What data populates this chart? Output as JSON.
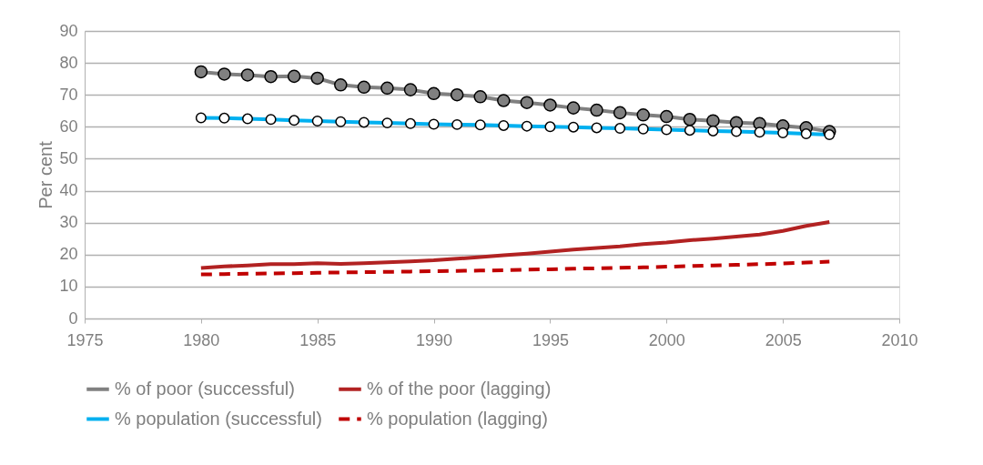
{
  "chart_data": {
    "type": "line",
    "ylabel": "Per cent",
    "x": [
      1980,
      1981,
      1982,
      1983,
      1984,
      1985,
      1986,
      1987,
      1988,
      1989,
      1990,
      1991,
      1992,
      1993,
      1994,
      1995,
      1996,
      1997,
      1998,
      1999,
      2000,
      2001,
      2002,
      2003,
      2004,
      2005,
      2006,
      2007
    ],
    "series": [
      {
        "name": "% of poor (successful)",
        "color": "#808080",
        "marker": "circle",
        "line_style": "solid",
        "values": [
          77.2,
          76.5,
          76.2,
          75.7,
          75.8,
          75.2,
          73.1,
          72.4,
          72.1,
          71.6,
          70.4,
          70.0,
          69.4,
          68.2,
          67.6,
          66.8,
          65.9,
          65.2,
          64.4,
          63.7,
          63.2,
          62.3,
          61.9,
          61.3,
          61.0,
          60.3,
          59.7,
          58.5
        ]
      },
      {
        "name": "% population (successful)",
        "color": "#00b0f0",
        "marker": "circle",
        "line_style": "solid",
        "values": [
          62.8,
          62.7,
          62.5,
          62.3,
          62.0,
          61.8,
          61.6,
          61.4,
          61.2,
          61.0,
          60.8,
          60.7,
          60.6,
          60.4,
          60.2,
          60.0,
          59.9,
          59.7,
          59.5,
          59.3,
          59.1,
          58.9,
          58.7,
          58.5,
          58.3,
          58.1,
          57.8,
          57.5
        ]
      },
      {
        "name": "% of the poor (lagging)",
        "color": "#b22222",
        "marker": "none",
        "line_style": "solid",
        "values": [
          15.8,
          16.3,
          16.6,
          17.0,
          17.0,
          17.3,
          17.1,
          17.3,
          17.6,
          17.9,
          18.2,
          18.7,
          19.2,
          19.8,
          20.3,
          20.9,
          21.6,
          22.1,
          22.6,
          23.3,
          23.8,
          24.5,
          25.0,
          25.6,
          26.3,
          27.4,
          29.0,
          30.2
        ]
      },
      {
        "name": "% population (lagging)",
        "color": "#c00000",
        "marker": "none",
        "line_style": "dashed",
        "values": [
          13.8,
          13.9,
          14.0,
          14.1,
          14.2,
          14.3,
          14.4,
          14.5,
          14.6,
          14.7,
          14.8,
          14.9,
          15.0,
          15.1,
          15.3,
          15.4,
          15.6,
          15.7,
          15.9,
          16.0,
          16.2,
          16.4,
          16.6,
          16.8,
          17.0,
          17.2,
          17.5,
          17.8
        ]
      }
    ],
    "xlim": [
      1975,
      2010
    ],
    "xticks": [
      1975,
      1980,
      1985,
      1990,
      1995,
      2000,
      2005,
      2010
    ],
    "ylim": [
      0,
      90
    ],
    "yticks": [
      0,
      10,
      20,
      30,
      40,
      50,
      60,
      70,
      80,
      90
    ],
    "grid": "y",
    "legend": "bottom"
  }
}
